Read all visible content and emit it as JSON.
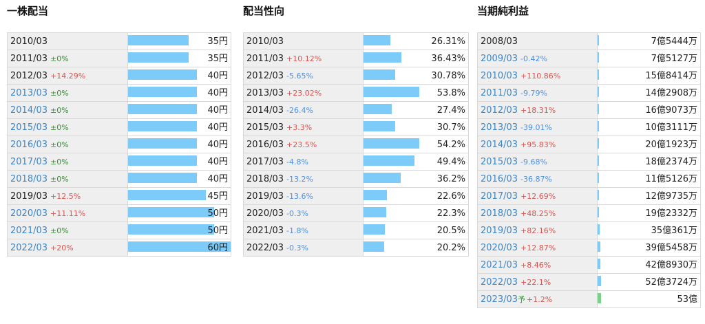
{
  "panels": [
    {
      "title": "一株配当",
      "max": 60,
      "bar_scale": 1.0,
      "rows": [
        {
          "period": "2010/03",
          "change": "",
          "change_dir": "",
          "link": false,
          "value": "35円",
          "amount": 35
        },
        {
          "period": "2011/03",
          "change": "±0%",
          "change_dir": "flat",
          "link": false,
          "value": "35円",
          "amount": 35
        },
        {
          "period": "2012/03",
          "change": "+14.29%",
          "change_dir": "up",
          "link": false,
          "value": "40円",
          "amount": 40
        },
        {
          "period": "2013/03",
          "change": "±0%",
          "change_dir": "flat",
          "link": true,
          "value": "40円",
          "amount": 40
        },
        {
          "period": "2014/03",
          "change": "±0%",
          "change_dir": "flat",
          "link": true,
          "value": "40円",
          "amount": 40
        },
        {
          "period": "2015/03",
          "change": "±0%",
          "change_dir": "flat",
          "link": true,
          "value": "40円",
          "amount": 40
        },
        {
          "period": "2016/03",
          "change": "±0%",
          "change_dir": "flat",
          "link": true,
          "value": "40円",
          "amount": 40
        },
        {
          "period": "2017/03",
          "change": "±0%",
          "change_dir": "flat",
          "link": true,
          "value": "40円",
          "amount": 40
        },
        {
          "period": "2018/03",
          "change": "±0%",
          "change_dir": "flat",
          "link": true,
          "value": "40円",
          "amount": 40
        },
        {
          "period": "2019/03",
          "change": "+12.5%",
          "change_dir": "up",
          "link": false,
          "value": "45円",
          "amount": 45
        },
        {
          "period": "2020/03",
          "change": "+11.11%",
          "change_dir": "up",
          "link": true,
          "value": "50円",
          "amount": 50
        },
        {
          "period": "2021/03",
          "change": "±0%",
          "change_dir": "flat",
          "link": true,
          "value": "50円",
          "amount": 50
        },
        {
          "period": "2022/03",
          "change": "+20%",
          "change_dir": "up",
          "link": true,
          "value": "60円",
          "amount": 60
        }
      ]
    },
    {
      "title": "配当性向",
      "max": 100,
      "bar_scale": 1.5,
      "rows": [
        {
          "period": "2010/03",
          "change": "",
          "change_dir": "",
          "link": false,
          "value": "26.31%",
          "amount": 26.31
        },
        {
          "period": "2011/03",
          "change": "+10.12%",
          "change_dir": "up",
          "link": false,
          "value": "36.43%",
          "amount": 36.43
        },
        {
          "period": "2012/03",
          "change": "-5.65%",
          "change_dir": "down",
          "link": false,
          "value": "30.78%",
          "amount": 30.78
        },
        {
          "period": "2013/03",
          "change": "+23.02%",
          "change_dir": "up",
          "link": false,
          "value": "53.8%",
          "amount": 53.8
        },
        {
          "period": "2014/03",
          "change": "-26.4%",
          "change_dir": "down",
          "link": false,
          "value": "27.4%",
          "amount": 27.4
        },
        {
          "period": "2015/03",
          "change": "+3.3%",
          "change_dir": "up",
          "link": false,
          "value": "30.7%",
          "amount": 30.7
        },
        {
          "period": "2016/03",
          "change": "+23.5%",
          "change_dir": "up",
          "link": false,
          "value": "54.2%",
          "amount": 54.2
        },
        {
          "period": "2017/03",
          "change": "-4.8%",
          "change_dir": "down",
          "link": false,
          "value": "49.4%",
          "amount": 49.4
        },
        {
          "period": "2018/03",
          "change": "-13.2%",
          "change_dir": "down",
          "link": false,
          "value": "36.2%",
          "amount": 36.2
        },
        {
          "period": "2019/03",
          "change": "-13.6%",
          "change_dir": "down",
          "link": false,
          "value": "22.6%",
          "amount": 22.6
        },
        {
          "period": "2020/03",
          "change": "-0.3%",
          "change_dir": "down",
          "link": false,
          "value": "22.3%",
          "amount": 22.3
        },
        {
          "period": "2021/03",
          "change": "-1.8%",
          "change_dir": "down",
          "link": false,
          "value": "20.5%",
          "amount": 20.5
        },
        {
          "period": "2022/03",
          "change": "-0.3%",
          "change_dir": "down",
          "link": false,
          "value": "20.2%",
          "amount": 20.2
        }
      ]
    },
    {
      "title": "当期純利益",
      "max": 5300000000,
      "bar_scale": 0.05,
      "rows": [
        {
          "period": "2008/03",
          "change": "",
          "change_dir": "",
          "link": false,
          "value": "7億5444万",
          "amount": 754440000
        },
        {
          "period": "2009/03",
          "change": "-0.42%",
          "change_dir": "down",
          "link": true,
          "value": "7億5127万",
          "amount": 751270000
        },
        {
          "period": "2010/03",
          "change": "+110.86%",
          "change_dir": "up",
          "link": true,
          "value": "15億8414万",
          "amount": 1584140000
        },
        {
          "period": "2011/03",
          "change": "-9.79%",
          "change_dir": "down",
          "link": true,
          "value": "14億2908万",
          "amount": 1429080000
        },
        {
          "period": "2012/03",
          "change": "+18.31%",
          "change_dir": "up",
          "link": true,
          "value": "16億9073万",
          "amount": 1690730000
        },
        {
          "period": "2013/03",
          "change": "-39.01%",
          "change_dir": "down",
          "link": true,
          "value": "10億3111万",
          "amount": 1031110000
        },
        {
          "period": "2014/03",
          "change": "+95.83%",
          "change_dir": "up",
          "link": true,
          "value": "20億1923万",
          "amount": 2019230000
        },
        {
          "period": "2015/03",
          "change": "-9.68%",
          "change_dir": "down",
          "link": true,
          "value": "18億2374万",
          "amount": 1823740000
        },
        {
          "period": "2016/03",
          "change": "-36.87%",
          "change_dir": "down",
          "link": true,
          "value": "11億5126万",
          "amount": 1151260000
        },
        {
          "period": "2017/03",
          "change": "+12.69%",
          "change_dir": "up",
          "link": true,
          "value": "12億9735万",
          "amount": 1297350000
        },
        {
          "period": "2018/03",
          "change": "+48.25%",
          "change_dir": "up",
          "link": true,
          "value": "19億2332万",
          "amount": 1923320000
        },
        {
          "period": "2019/03",
          "change": "+82.16%",
          "change_dir": "up",
          "link": true,
          "value": "35億361万",
          "amount": 3503610000
        },
        {
          "period": "2020/03",
          "change": "+12.87%",
          "change_dir": "up",
          "link": true,
          "value": "39億5458万",
          "amount": 3954580000
        },
        {
          "period": "2021/03",
          "change": "+8.46%",
          "change_dir": "up",
          "link": true,
          "value": "42億8930万",
          "amount": 4289300000
        },
        {
          "period": "2022/03",
          "change": "+22.1%",
          "change_dir": "up",
          "link": true,
          "value": "52億3724万",
          "amount": 5237240000
        },
        {
          "period": "2023/03",
          "forecast_mark": "予",
          "change": "+1.2%",
          "change_dir": "up",
          "link": true,
          "forecast": true,
          "value": "53億",
          "amount": 5300000000
        }
      ]
    }
  ],
  "colors": {
    "bar": "#7ccbf8",
    "forecast_bar": "#7dd08a",
    "up": "#d9534f",
    "down": "#4a90e2",
    "flat": "#3a8a3a",
    "link": "#3d86c6"
  }
}
